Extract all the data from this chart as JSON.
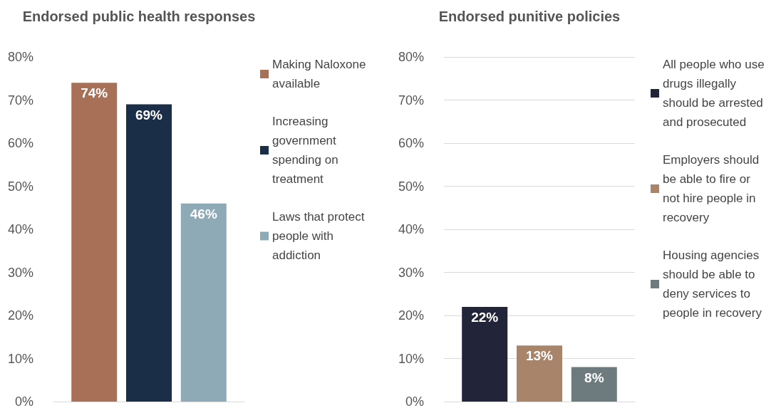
{
  "chart_data": [
    {
      "type": "bar",
      "title": "Endorsed public health responses",
      "categories": [
        null
      ],
      "series": [
        {
          "name": "Making Naloxone available",
          "color": "#a97058",
          "values": [
            74
          ],
          "value_labels": [
            "74%"
          ]
        },
        {
          "name": "Increasing government spending on treatment",
          "color": "#1a2e48",
          "values": [
            69
          ],
          "value_labels": [
            "69%"
          ]
        },
        {
          "name": "Laws that protect people with addiction",
          "color": "#8eaab6",
          "values": [
            46
          ],
          "value_labels": [
            "46%"
          ]
        }
      ],
      "ylim": [
        0,
        80
      ],
      "yticks": [
        {
          "value": 0,
          "label": "0%"
        },
        {
          "value": 10,
          "label": "10%"
        },
        {
          "value": 20,
          "label": "20%"
        },
        {
          "value": 30,
          "label": "30%"
        },
        {
          "value": 40,
          "label": "40%"
        },
        {
          "value": 50,
          "label": "50%"
        },
        {
          "value": 60,
          "label": "60%"
        },
        {
          "value": 70,
          "label": "70%"
        },
        {
          "value": 80,
          "label": "80%"
        }
      ],
      "grid": false,
      "legend": "right"
    },
    {
      "type": "bar",
      "title": "Endorsed punitive policies",
      "categories": [
        null
      ],
      "series": [
        {
          "name": "All people who use drugs illegally should be arrested and prosecuted",
          "color": "#22253a",
          "values": [
            22
          ],
          "value_labels": [
            "22%"
          ]
        },
        {
          "name": "Employers should be able to fire or not hire people in recovery",
          "color": "#a8846a",
          "values": [
            13
          ],
          "value_labels": [
            "13%"
          ]
        },
        {
          "name": "Housing agencies should be able to deny services to people in recovery",
          "color": "#6e7b7e",
          "values": [
            8
          ],
          "value_labels": [
            "8%"
          ]
        }
      ],
      "ylim": [
        0,
        80
      ],
      "yticks": [
        {
          "value": 0,
          "label": "0%"
        },
        {
          "value": 10,
          "label": "10%"
        },
        {
          "value": 20,
          "label": "20%"
        },
        {
          "value": 30,
          "label": "30%"
        },
        {
          "value": 40,
          "label": "40%"
        },
        {
          "value": 50,
          "label": "50%"
        },
        {
          "value": 60,
          "label": "60%"
        },
        {
          "value": 70,
          "label": "70%"
        },
        {
          "value": 80,
          "label": "80%"
        }
      ],
      "grid": "y",
      "legend": "right"
    }
  ]
}
